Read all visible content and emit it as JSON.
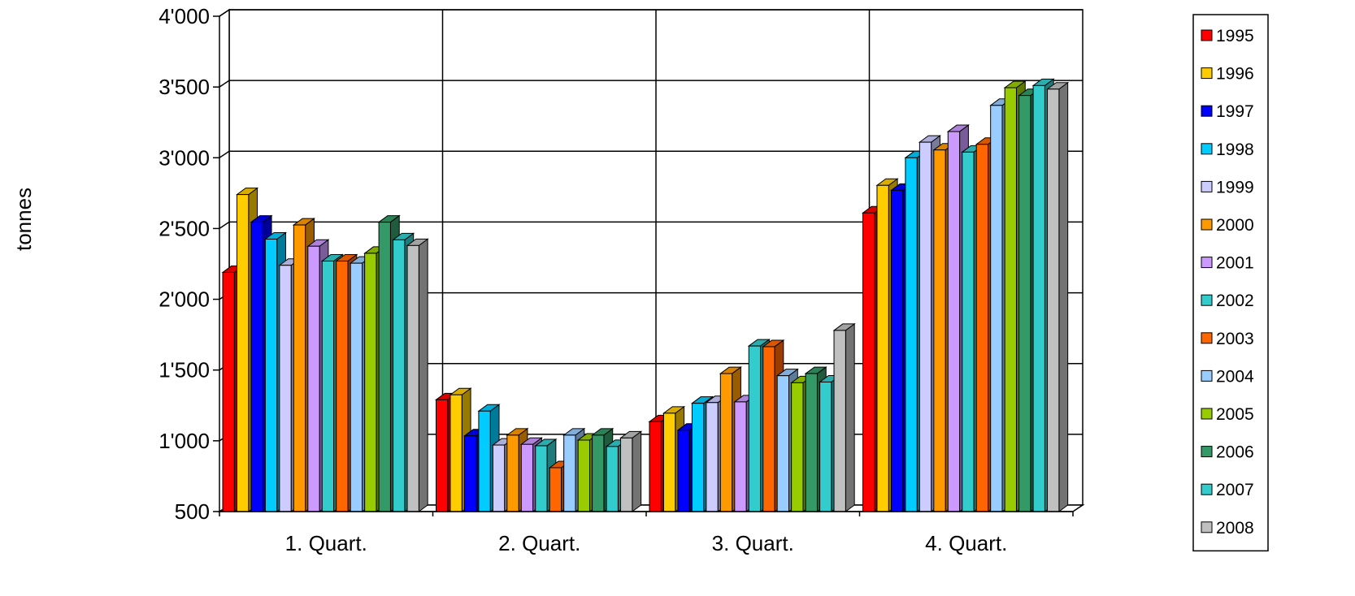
{
  "chart_data": {
    "type": "bar",
    "title": "",
    "xlabel": "",
    "ylabel": "tonnes",
    "ylim": [
      500,
      4000
    ],
    "yticks": [
      "500",
      "1'000",
      "1'500",
      "2'000",
      "2'500",
      "3'000",
      "3'500",
      "4'000"
    ],
    "grid": true,
    "legend_position": "right",
    "categories": [
      "1. Quart.",
      "2. Quart.",
      "3. Quart.",
      "4. Quart."
    ],
    "series": [
      {
        "name": "1995",
        "color": "#ff0000",
        "values": [
          2190,
          1290,
          1135,
          2610
        ]
      },
      {
        "name": "1996",
        "color": "#ffcc00",
        "values": [
          2740,
          1325,
          1195,
          2805
        ]
      },
      {
        "name": "1997",
        "color": "#0000ff",
        "values": [
          2545,
          1035,
          1075,
          2770
        ]
      },
      {
        "name": "1998",
        "color": "#00ccff",
        "values": [
          2425,
          1210,
          1265,
          3000
        ]
      },
      {
        "name": "1999",
        "color": "#ccccff",
        "values": [
          2240,
          970,
          1270,
          3110
        ]
      },
      {
        "name": "2000",
        "color": "#ff9900",
        "values": [
          2525,
          1040,
          1475,
          3055
        ]
      },
      {
        "name": "2001",
        "color": "#cc99ff",
        "values": [
          2375,
          975,
          1275,
          3185
        ]
      },
      {
        "name": "2002",
        "color": "#33cccc",
        "values": [
          2270,
          965,
          1670,
          3040
        ]
      },
      {
        "name": "2003",
        "color": "#ff6600",
        "values": [
          2270,
          810,
          1665,
          3095
        ]
      },
      {
        "name": "2004",
        "color": "#99ccff",
        "values": [
          2255,
          1040,
          1460,
          3370
        ]
      },
      {
        "name": "2005",
        "color": "#99cc00",
        "values": [
          2325,
          1005,
          1410,
          3495
        ]
      },
      {
        "name": "2006",
        "color": "#339966",
        "values": [
          2545,
          1040,
          1475,
          3440
        ]
      },
      {
        "name": "2007",
        "color": "#33cccc",
        "values": [
          2420,
          960,
          1415,
          3510
        ]
      },
      {
        "name": "2008",
        "color": "#c0c0c0",
        "values": [
          2380,
          1020,
          1780,
          3485
        ]
      }
    ]
  }
}
